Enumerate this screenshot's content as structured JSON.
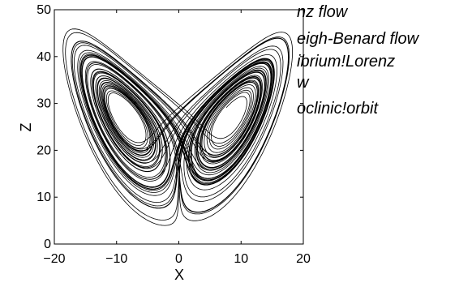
{
  "overlay_text": [
    "nz flow",
    "eigh-Benard flow",
    "ibrium!Lorenz",
    "w",
    "oclinic!orbit"
  ],
  "chart_data": {
    "type": "line",
    "title": "",
    "xlabel": "X",
    "ylabel": "Z",
    "xlim": [
      -20,
      20
    ],
    "ylim": [
      0,
      50
    ],
    "xticks": [
      "−20",
      "−10",
      "0",
      "10",
      "20"
    ],
    "yticks": [
      "0",
      "10",
      "20",
      "30",
      "40",
      "50"
    ],
    "grid": false,
    "legend": "none",
    "line_color": "#000000",
    "series": [
      {
        "description_values": "Lorenz attractor projection (x, z), sigma=10, rho=28, beta=8/3; butterfly lobes centered near x=±8.5, z=27, spanning x≈-16..17, z≈5..45",
        "params": {
          "sigma": 10,
          "rho": 28,
          "beta": 2.6667
        }
      }
    ]
  }
}
